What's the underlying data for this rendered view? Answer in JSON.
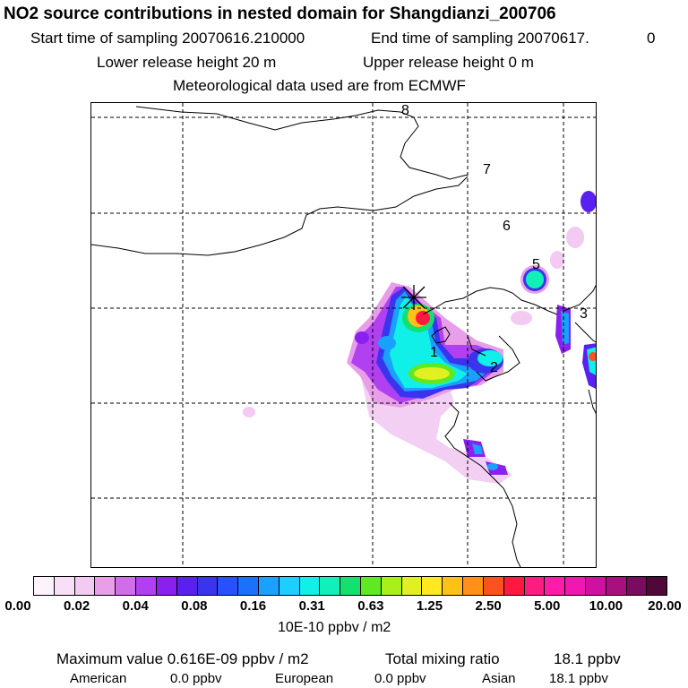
{
  "header": {
    "title": "NO2 source contributions in nested domain for Shangdianzi_200706",
    "start_label": "Start time of sampling 20070616.210000",
    "end_label": "End time of sampling 20070617.",
    "end_suffix": "0",
    "lower_release": "Lower release height   20 m",
    "upper_release": "Upper release height    0 m",
    "met_data": "Meteorological data used are from ECMWF"
  },
  "map": {
    "receptor_marker": "asterisk-icon",
    "source_labels": [
      "1",
      "2",
      "3",
      "5",
      "6",
      "7",
      "8"
    ]
  },
  "colorbar": {
    "colors": [
      "#fdf3fd",
      "#f8dff8",
      "#f2caf2",
      "#e89ee8",
      "#d06ee8",
      "#b040f0",
      "#8a20f0",
      "#5a20f0",
      "#3a34ee",
      "#2850ff",
      "#1c70ff",
      "#1aa0ff",
      "#1ccfff",
      "#10f0e8",
      "#10f0b8",
      "#14e070",
      "#60e820",
      "#a8f018",
      "#e0f020",
      "#ffe820",
      "#ffc018",
      "#ff9018",
      "#ff5020",
      "#ff1840",
      "#ff1c80",
      "#ff1ca8",
      "#f018b0",
      "#d0109e",
      "#a81080",
      "#7a0c60",
      "#500838"
    ],
    "tick_labels": [
      "0.00",
      "0.02",
      "0.04",
      "0.08",
      "0.16",
      "0.31",
      "0.63",
      "1.25",
      "2.50",
      "5.00",
      "10.00",
      "20.00"
    ],
    "units": "10E-10 ppbv / m2"
  },
  "footer": {
    "max_value": "Maximum value  0.616E-09 ppbv / m2",
    "total_label": "Total mixing ratio",
    "total_value": "18.1 ppbv",
    "american_label": "American",
    "american_value": "0.0 ppbv",
    "european_label": "European",
    "european_value": "0.0 ppbv",
    "asian_label": "Asian",
    "asian_value": "18.1 ppbv"
  }
}
